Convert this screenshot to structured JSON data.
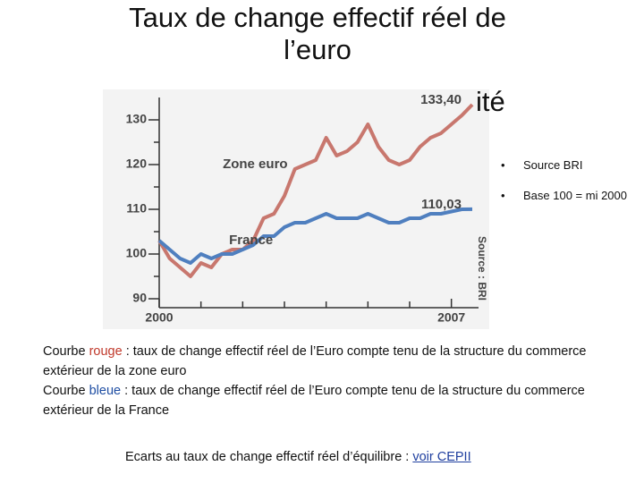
{
  "slide": {
    "title": "Taux de change effectif réel de l’euro",
    "title_fragment": "ité",
    "bullets": [
      "Source BRI",
      "Base 100 = mi 2000"
    ],
    "paragraphs": [
      [
        "Courbe ",
        "rouge",
        " : taux de change effectif réel de l’Euro compte tenu de la structure du commerce extérieur de la zone euro"
      ],
      [
        "Courbe ",
        "bleue",
        " : taux de change effectif réel de l’Euro compte tenu de la structure du commerce extérieur de la France"
      ]
    ],
    "footer": "Ecarts au taux de change effectif réel d’équilibre : ",
    "link": "voir CEPII"
  },
  "chart_data": {
    "type": "line",
    "source": "Source : BRI",
    "x": [
      2000,
      2000.25,
      2000.5,
      2000.75,
      2001,
      2001.25,
      2001.5,
      2001.75,
      2002,
      2002.25,
      2002.5,
      2002.75,
      2003,
      2003.25,
      2003.5,
      2003.75,
      2004,
      2004.25,
      2004.5,
      2004.75,
      2005,
      2005.25,
      2005.5,
      2005.75,
      2006,
      2006.25,
      2006.5,
      2006.75,
      2007,
      2007.25,
      2007.5
    ],
    "series": [
      {
        "name": "Zone euro",
        "color": "#c8776e",
        "values": [
          103,
          99,
          97,
          95,
          98,
          97,
          100,
          101,
          101,
          103,
          108,
          109,
          113,
          119,
          120,
          121,
          126,
          122,
          123,
          125,
          129,
          124,
          121,
          120,
          121,
          124,
          126,
          127,
          129,
          131,
          133.4
        ]
      },
      {
        "name": "France",
        "color": "#4f7fbf",
        "values": [
          103,
          101,
          99,
          98,
          100,
          99,
          100,
          100,
          101,
          102,
          104,
          104,
          106,
          107,
          107,
          108,
          109,
          108,
          108,
          108,
          109,
          108,
          107,
          107,
          108,
          108,
          109,
          109,
          109.5,
          110,
          110.03
        ]
      }
    ],
    "annotations": [
      {
        "text": "133,40",
        "x": 2007.5,
        "y": 133.4
      },
      {
        "text": "110,03",
        "x": 2007.5,
        "y": 110.03
      }
    ],
    "xlim": [
      2000,
      2007.65
    ],
    "xticks": [
      2000,
      2007
    ],
    "xminor_ticks": [
      2001,
      2002,
      2003,
      2004,
      2005,
      2006
    ],
    "ylim": [
      88,
      135
    ],
    "yticks": [
      90,
      100,
      110,
      120,
      130
    ],
    "yminor_ticks": [
      95,
      105,
      115,
      125
    ]
  }
}
